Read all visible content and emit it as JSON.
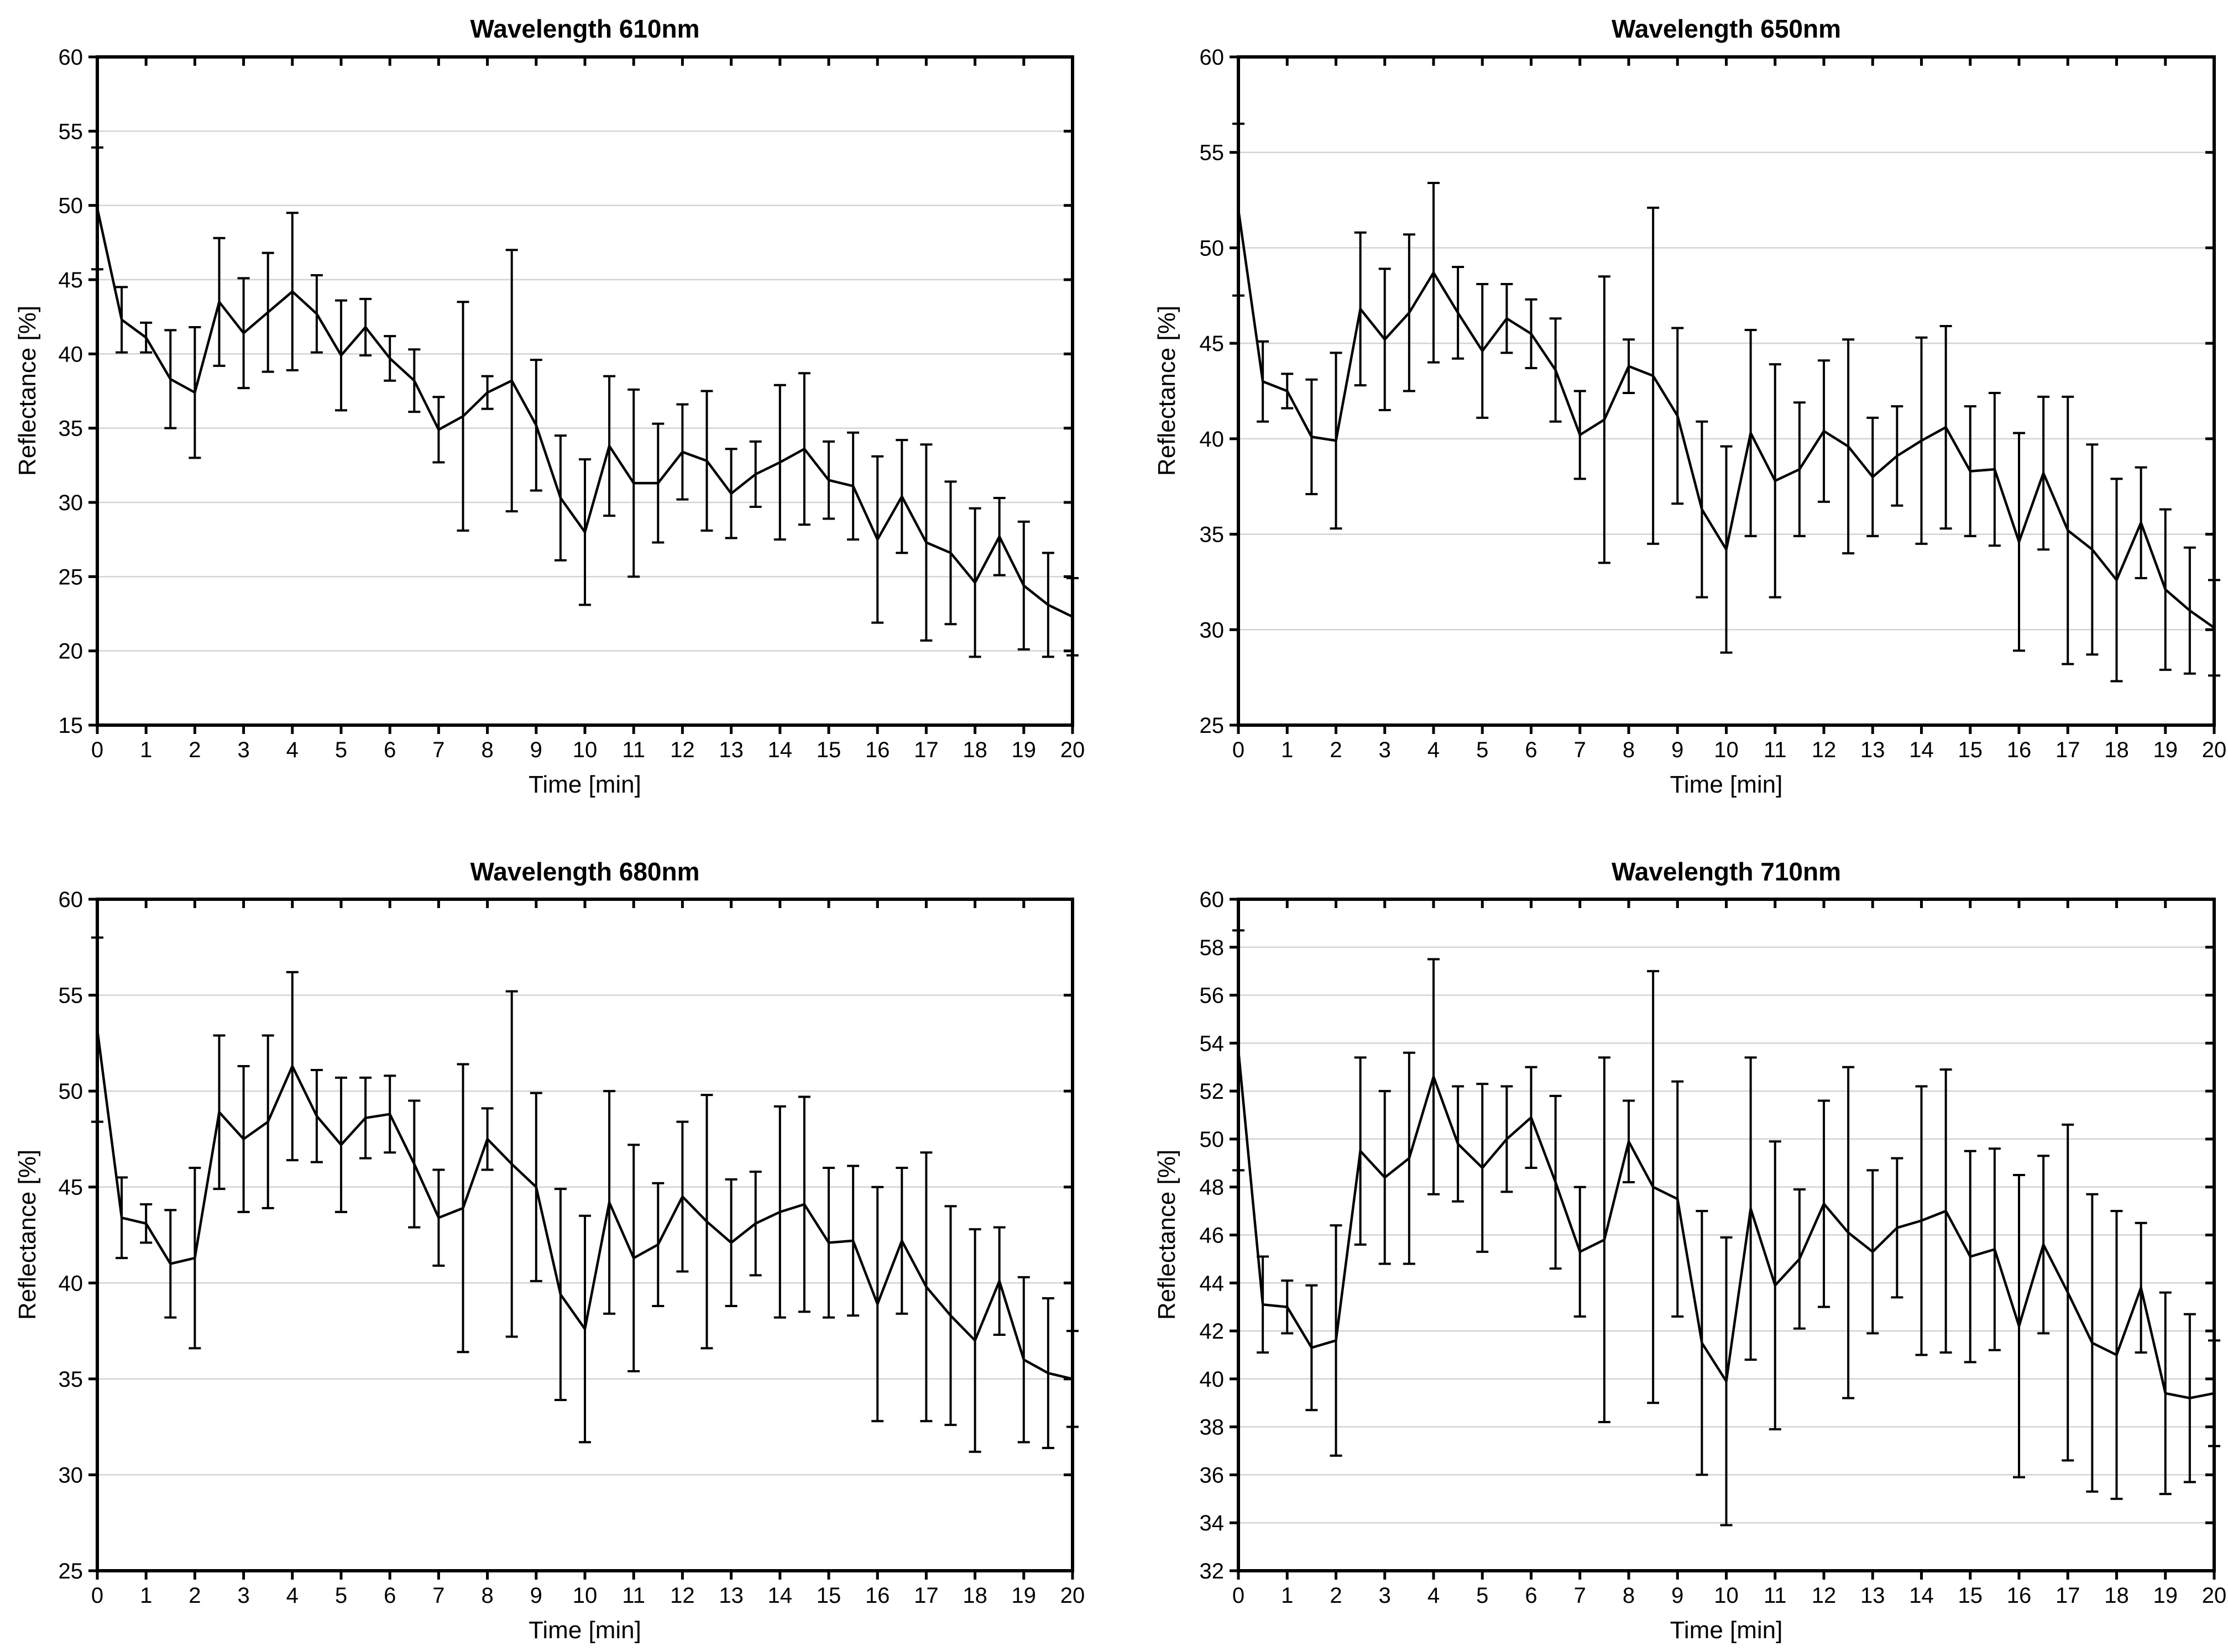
{
  "colors": {
    "line": "#000000",
    "grid": "#d3d3d3",
    "background": "#ffffff",
    "text": "#000000"
  },
  "chart_data": [
    {
      "type": "line",
      "title": "Wavelength 610nm",
      "xlabel": "Time [min]",
      "ylabel": "Reflectance [%]",
      "xlim": [
        0,
        20
      ],
      "xtick_step": 1,
      "ylim": [
        15,
        60
      ],
      "ytick_step": 5,
      "grid": "horizontal",
      "error_bars": true,
      "x": [
        0,
        0.5,
        1,
        1.5,
        2,
        2.5,
        3,
        3.5,
        4,
        4.5,
        5,
        5.5,
        6,
        6.5,
        7,
        7.5,
        8,
        8.5,
        9,
        9.5,
        10,
        10.5,
        11,
        11.5,
        12,
        12.5,
        13,
        13.5,
        14,
        14.5,
        15,
        15.5,
        16,
        16.5,
        17,
        17.5,
        18,
        18.5,
        19,
        19.5,
        20
      ],
      "y": [
        49.8,
        42.3,
        41.1,
        38.3,
        37.4,
        43.5,
        41.4,
        42.8,
        44.2,
        42.7,
        39.9,
        41.8,
        39.7,
        38.2,
        34.9,
        35.8,
        37.4,
        38.2,
        35.2,
        30.3,
        28.0,
        33.8,
        31.3,
        31.3,
        33.4,
        32.8,
        30.6,
        31.9,
        32.7,
        33.6,
        31.5,
        31.1,
        27.5,
        30.4,
        27.3,
        26.6,
        24.6,
        27.7,
        24.4,
        23.1,
        22.3
      ],
      "err": [
        4.1,
        2.2,
        1.0,
        3.3,
        4.4,
        4.3,
        3.7,
        4.0,
        5.3,
        2.6,
        3.7,
        1.9,
        1.5,
        2.1,
        2.2,
        7.7,
        1.1,
        8.8,
        4.4,
        4.2,
        4.9,
        4.7,
        6.3,
        4.0,
        3.2,
        4.7,
        3.0,
        2.2,
        5.2,
        5.1,
        2.6,
        3.6,
        5.6,
        3.8,
        6.6,
        4.8,
        5.0,
        2.6,
        4.3,
        3.5,
        2.6
      ]
    },
    {
      "type": "line",
      "title": "Wavelength 650nm",
      "xlabel": "Time [min]",
      "ylabel": "Reflectance [%]",
      "xlim": [
        0,
        20
      ],
      "xtick_step": 1,
      "ylim": [
        25,
        60
      ],
      "ytick_step": 5,
      "grid": "horizontal",
      "error_bars": true,
      "x": [
        0,
        0.5,
        1,
        1.5,
        2,
        2.5,
        3,
        3.5,
        4,
        4.5,
        5,
        5.5,
        6,
        6.5,
        7,
        7.5,
        8,
        8.5,
        9,
        9.5,
        10,
        10.5,
        11,
        11.5,
        12,
        12.5,
        13,
        13.5,
        14,
        14.5,
        15,
        15.5,
        16,
        16.5,
        17,
        17.5,
        18,
        18.5,
        19,
        19.5,
        20
      ],
      "y": [
        52.0,
        43.0,
        42.5,
        40.1,
        39.9,
        46.8,
        45.2,
        46.6,
        48.7,
        46.6,
        44.6,
        46.3,
        45.5,
        43.6,
        40.2,
        41.0,
        43.8,
        43.3,
        41.2,
        36.3,
        34.2,
        40.3,
        37.8,
        38.4,
        40.4,
        39.6,
        38.0,
        39.1,
        39.9,
        40.6,
        38.3,
        38.4,
        34.6,
        38.2,
        35.2,
        34.2,
        32.6,
        35.6,
        32.1,
        31.0,
        30.1
      ],
      "err": [
        4.5,
        2.1,
        0.9,
        3.0,
        4.6,
        4.0,
        3.7,
        4.1,
        4.7,
        2.4,
        3.5,
        1.8,
        1.8,
        2.7,
        2.3,
        7.5,
        1.4,
        8.8,
        4.6,
        4.6,
        5.4,
        5.4,
        6.1,
        3.5,
        3.7,
        5.6,
        3.1,
        2.6,
        5.4,
        5.3,
        3.4,
        4.0,
        5.7,
        4.0,
        7.0,
        5.5,
        5.3,
        2.9,
        4.2,
        3.3,
        2.5
      ]
    },
    {
      "type": "line",
      "title": "Wavelength 680nm",
      "xlabel": "Time [min]",
      "ylabel": "Reflectance [%]",
      "xlim": [
        0,
        20
      ],
      "xtick_step": 1,
      "ylim": [
        25,
        60
      ],
      "ytick_step": 5,
      "grid": "horizontal",
      "error_bars": true,
      "x": [
        0,
        0.5,
        1,
        1.5,
        2,
        2.5,
        3,
        3.5,
        4,
        4.5,
        5,
        5.5,
        6,
        6.5,
        7,
        7.5,
        8,
        8.5,
        9,
        9.5,
        10,
        10.5,
        11,
        11.5,
        12,
        12.5,
        13,
        13.5,
        14,
        14.5,
        15,
        15.5,
        16,
        16.5,
        17,
        17.5,
        18,
        18.5,
        19,
        19.5,
        20
      ],
      "y": [
        53.2,
        43.4,
        43.1,
        41.0,
        41.3,
        48.9,
        47.5,
        48.4,
        51.3,
        48.7,
        47.2,
        48.6,
        48.8,
        46.2,
        43.4,
        43.9,
        47.5,
        46.2,
        45.0,
        39.4,
        37.6,
        44.2,
        41.3,
        42.0,
        44.5,
        43.2,
        42.1,
        43.1,
        43.7,
        44.1,
        42.1,
        42.2,
        38.9,
        42.2,
        39.8,
        38.3,
        37.0,
        40.1,
        36.0,
        35.3,
        35.0
      ],
      "err": [
        4.8,
        2.1,
        1.0,
        2.8,
        4.7,
        4.0,
        3.8,
        4.5,
        4.9,
        2.4,
        3.5,
        2.1,
        2.0,
        3.3,
        2.5,
        7.5,
        1.6,
        9.0,
        4.9,
        5.5,
        5.9,
        5.8,
        5.9,
        3.2,
        3.9,
        6.6,
        3.3,
        2.7,
        5.5,
        5.6,
        3.9,
        3.9,
        6.1,
        3.8,
        7.0,
        5.7,
        5.8,
        2.8,
        4.3,
        3.9,
        2.5
      ]
    },
    {
      "type": "line",
      "title": "Wavelength 710nm",
      "xlabel": "Time [min]",
      "ylabel": "Reflectance [%]",
      "xlim": [
        0,
        20
      ],
      "xtick_step": 1,
      "ylim": [
        32,
        60
      ],
      "ytick_step": 2,
      "grid": "horizontal",
      "error_bars": true,
      "x": [
        0,
        0.5,
        1,
        1.5,
        2,
        2.5,
        3,
        3.5,
        4,
        4.5,
        5,
        5.5,
        6,
        6.5,
        7,
        7.5,
        8,
        8.5,
        9,
        9.5,
        10,
        10.5,
        11,
        11.5,
        12,
        12.5,
        13,
        13.5,
        14,
        14.5,
        15,
        15.5,
        16,
        16.5,
        17,
        17.5,
        18,
        18.5,
        19,
        19.5,
        20
      ],
      "y": [
        53.7,
        43.1,
        43.0,
        41.3,
        41.6,
        49.5,
        48.4,
        49.2,
        52.6,
        49.8,
        48.8,
        50.0,
        50.9,
        48.2,
        45.3,
        45.8,
        49.9,
        48.0,
        47.5,
        41.5,
        39.9,
        47.1,
        43.9,
        45.0,
        47.3,
        46.1,
        45.3,
        46.3,
        46.6,
        47.0,
        45.1,
        45.4,
        42.2,
        45.6,
        43.6,
        41.5,
        41.0,
        43.8,
        39.4,
        39.2,
        39.4
      ],
      "err": [
        5.0,
        2.0,
        1.1,
        2.6,
        4.8,
        3.9,
        3.6,
        4.4,
        4.9,
        2.4,
        3.5,
        2.2,
        2.1,
        3.6,
        2.7,
        7.6,
        1.7,
        9.0,
        4.9,
        5.5,
        6.0,
        6.3,
        6.0,
        2.9,
        4.3,
        6.9,
        3.4,
        2.9,
        5.6,
        5.9,
        4.4,
        4.2,
        6.3,
        3.7,
        7.0,
        6.2,
        6.0,
        2.7,
        4.2,
        3.5,
        2.2
      ]
    }
  ]
}
